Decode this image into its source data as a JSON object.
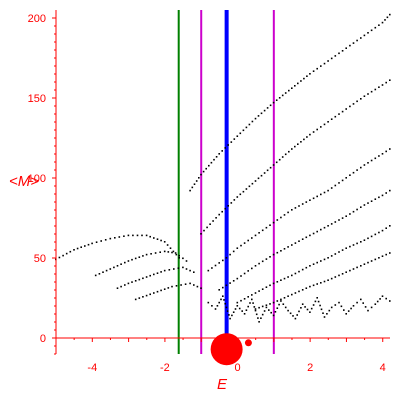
{
  "chart_data": {
    "type": "scatter",
    "title": "",
    "xlabel": "E",
    "ylabel": "<M>",
    "xlim": [
      -5,
      4.2
    ],
    "ylim": [
      -10,
      205
    ],
    "x_ticks": [
      -4,
      -2,
      0,
      2,
      4
    ],
    "y_ticks": [
      0,
      50,
      100,
      150,
      200
    ],
    "grid": false,
    "axis_color": "#ff0000",
    "point_color": "#000000",
    "vertical_lines": [
      {
        "x": -1.62,
        "color": "#008000"
      },
      {
        "x": -1.0,
        "color": "#cc00cc"
      },
      {
        "x": -0.3,
        "color": "#0000ff"
      },
      {
        "x": 1.0,
        "color": "#cc00cc"
      }
    ],
    "highlight_points": [
      {
        "x": -0.3,
        "y": -2,
        "color": "#ff0000",
        "size": "large"
      },
      {
        "x": 0.3,
        "y": -3,
        "color": "#ff0000",
        "size": "small"
      }
    ],
    "series": [
      {
        "x": [
          -5.0,
          -4.5,
          -4.0,
          -3.5,
          -3.0,
          -2.5,
          -2.0,
          -1.6
        ],
        "values": [
          49,
          55,
          59,
          62,
          64,
          64,
          60,
          50
        ]
      },
      {
        "x": [
          -3.9,
          -3.5,
          -3.0,
          -2.5,
          -2.0,
          -1.7,
          -1.4
        ],
        "values": [
          39,
          43,
          48,
          52,
          54,
          53,
          48
        ]
      },
      {
        "x": [
          -3.3,
          -3.0,
          -2.5,
          -2.0,
          -1.5,
          -1.2
        ],
        "values": [
          31,
          34,
          38,
          42,
          44,
          41
        ]
      },
      {
        "x": [
          -2.8,
          -2.3,
          -1.8,
          -1.3,
          -1.0
        ],
        "values": [
          24,
          28,
          32,
          34,
          31
        ]
      },
      {
        "x": [
          -1.3,
          -1.0,
          -0.5,
          0.0,
          0.5,
          1.0,
          1.5,
          2.0,
          2.5,
          3.0,
          3.5,
          4.0,
          4.2
        ],
        "values": [
          92,
          102,
          115,
          126,
          137,
          147,
          156,
          165,
          173,
          181,
          189,
          197,
          202
        ]
      },
      {
        "x": [
          -1.0,
          -0.5,
          0.0,
          0.5,
          1.0,
          1.5,
          2.0,
          2.5,
          3.0,
          3.5,
          4.0,
          4.2
        ],
        "values": [
          65,
          77,
          88,
          98,
          108,
          118,
          127,
          135,
          143,
          151,
          158,
          161
        ]
      },
      {
        "x": [
          -0.8,
          -0.3,
          0.0,
          0.5,
          1.0,
          1.5,
          2.0,
          2.5,
          3.0,
          3.5,
          4.0,
          4.2
        ],
        "values": [
          42,
          50,
          56,
          64,
          72,
          80,
          86,
          92,
          100,
          108,
          115,
          118
        ]
      },
      {
        "x": [
          -0.5,
          0.0,
          0.5,
          1.0,
          1.5,
          2.0,
          2.5,
          3.0,
          3.5,
          4.0,
          4.2
        ],
        "values": [
          30,
          37,
          45,
          52,
          58,
          64,
          70,
          76,
          83,
          89,
          92
        ]
      },
      {
        "x": [
          0.0,
          0.5,
          1.0,
          1.5,
          2.0,
          2.5,
          3.0,
          3.5,
          4.0,
          4.2
        ],
        "values": [
          22,
          28,
          34,
          39,
          45,
          50,
          56,
          61,
          67,
          70
        ]
      },
      {
        "x": [
          0.5,
          1.0,
          1.5,
          2.0,
          2.5,
          3.0,
          3.5,
          4.0,
          4.2
        ],
        "values": [
          18,
          22,
          27,
          32,
          36,
          41,
          46,
          51,
          53
        ]
      },
      {
        "x": [
          -0.8,
          -0.6,
          -0.4,
          -0.2,
          0.0,
          0.2,
          0.4,
          0.6,
          0.8,
          1.0,
          1.2,
          1.4,
          1.6,
          1.8,
          2.0,
          2.2,
          2.4,
          2.6,
          2.8,
          3.0,
          3.2,
          3.4,
          3.6,
          3.8,
          4.0,
          4.2
        ],
        "values": [
          22,
          18,
          26,
          12,
          20,
          15,
          24,
          10,
          19,
          14,
          23,
          17,
          12,
          21,
          16,
          25,
          13,
          19,
          22,
          15,
          20,
          24,
          17,
          21,
          26,
          23
        ]
      }
    ]
  }
}
